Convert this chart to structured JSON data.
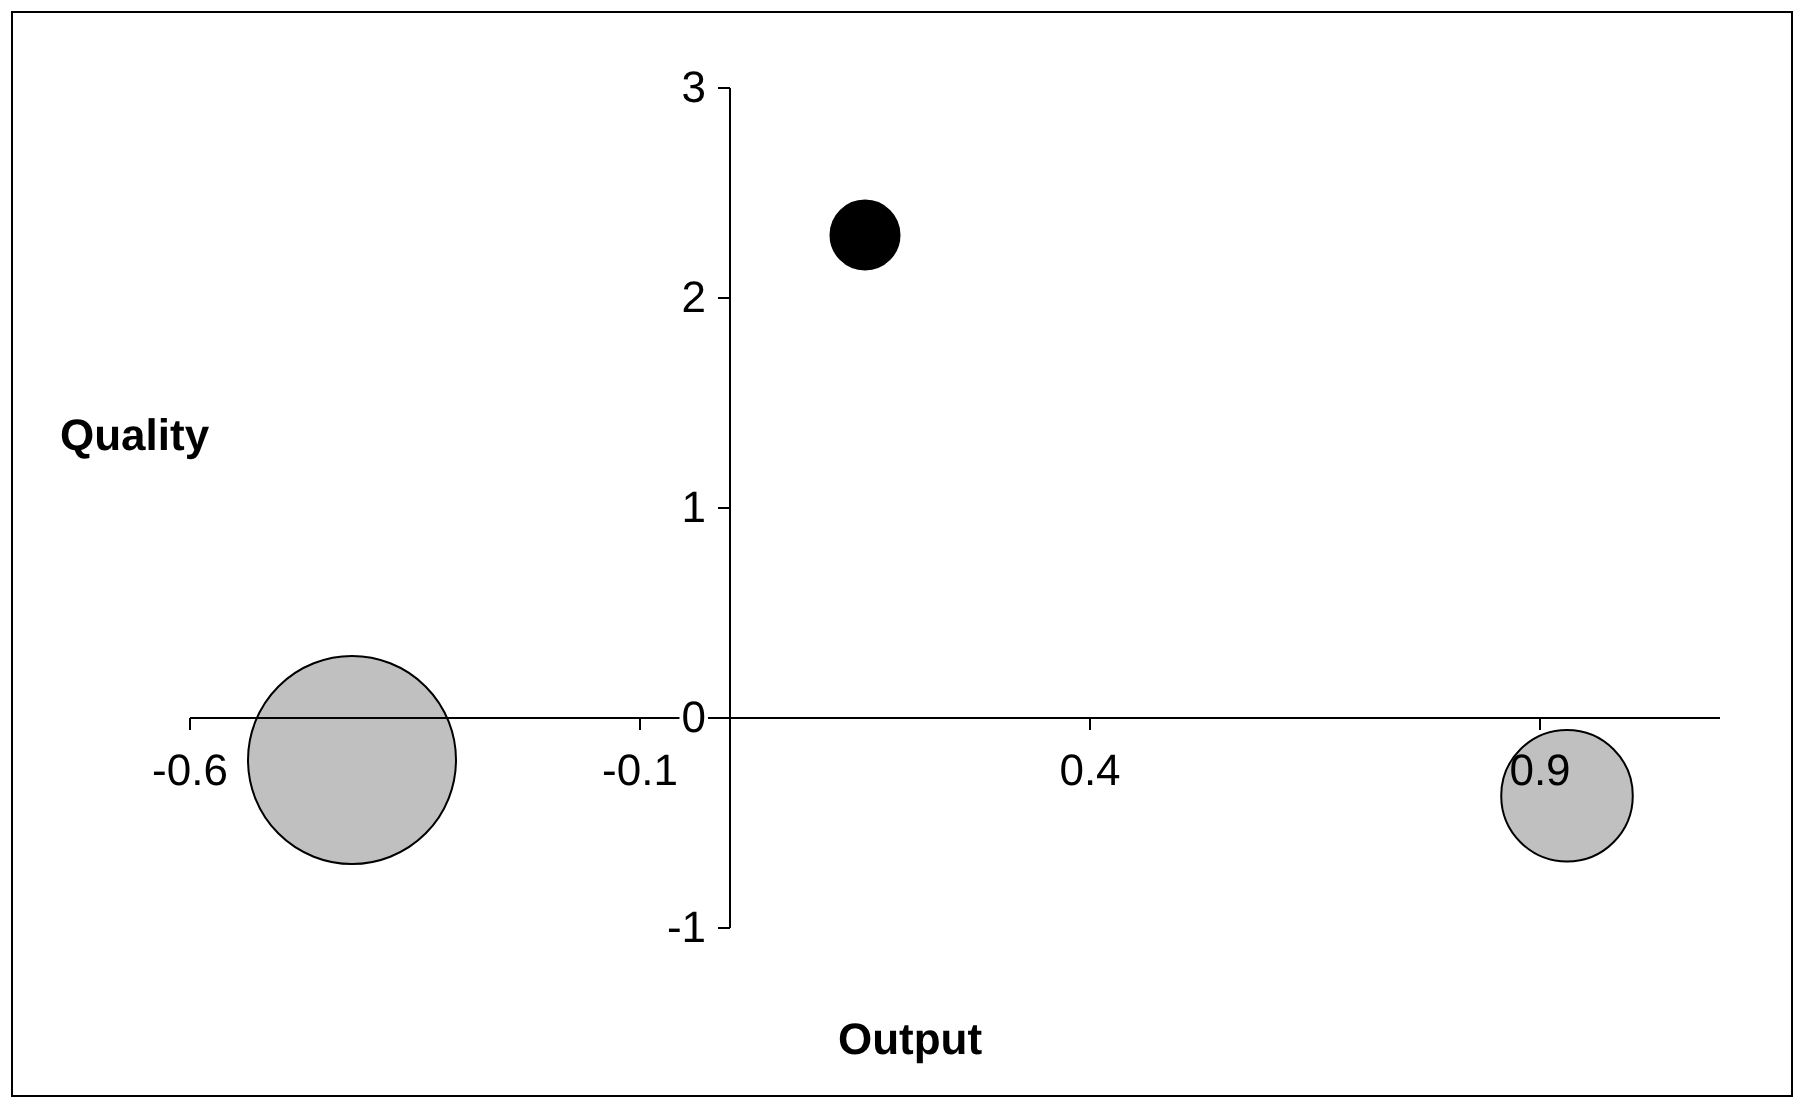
{
  "chart_data": {
    "type": "bubble",
    "xlabel": "Output",
    "ylabel": "Quality",
    "x": [
      0.15,
      -0.42,
      0.93
    ],
    "values": [
      2.3,
      -0.2,
      -0.37
    ],
    "sizes": [
      0.11,
      1,
      0.4
    ],
    "colors": [
      "#000000",
      "#c0c0c0",
      "#c0c0c0"
    ],
    "xlim": [
      -0.6,
      1.1
    ],
    "xticks": [
      -0.6,
      -0.1,
      0.4,
      0.9
    ],
    "ylim": [
      -1,
      3
    ],
    "yticks": [
      -1,
      0,
      1,
      2,
      3
    ],
    "grid": false
  }
}
